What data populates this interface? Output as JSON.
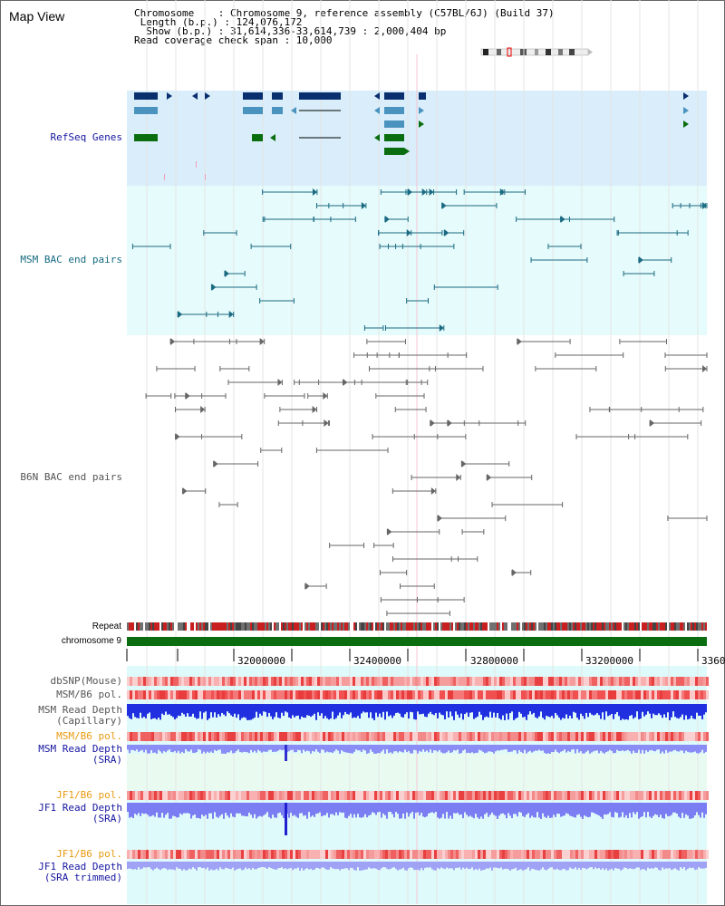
{
  "page": {
    "title": "Map View"
  },
  "info": {
    "chromosome_line": "Chromosome    : Chromosome 9, reference assembly (C57BL/6J) (Build 37)",
    "length_line": " Length (b.p.) : 124,076,172",
    "show_line": "  Show (b.p.) : 31,614,336-33,614,739 : 2,000,404 bp",
    "coverage_line": "Read coverage check span : 10,000"
  },
  "labels": {
    "refseq": "RefSeq Genes",
    "msm_bac": "MSM BAC end pairs",
    "b6n_bac": "B6N BAC end pairs",
    "repeat": "Repeat",
    "chromosome": "chromosome 9",
    "dbsnp": "dbSNP(Mouse)",
    "msm_b6_pol_1": "MSM/B6 pol.",
    "msm_read_cap": "MSM Read Depth\n(Capillary)",
    "msm_b6_pol_2": "MSM/B6 pol.",
    "msm_read_sra": "MSM Read Depth\n(SRA)",
    "jf1_b6_pol_1": "JF1/B6 pol.",
    "jf1_read_sra": "JF1 Read Depth\n(SRA)",
    "jf1_b6_pol_2": "JF1/B6 pol.",
    "jf1_read_trim": "JF1 Read Depth\n(SRA trimmed)"
  },
  "axis": {
    "ticks": [
      "32000000",
      "32400000",
      "32800000",
      "33200000",
      "3360"
    ]
  },
  "colors": {
    "refseq_bg": "#d9eefa",
    "bac_bg": "#e6fbfb",
    "lower_bg": "#dffafa",
    "gene_dark": "#0a2f6e",
    "gene_mid": "#4a93bf",
    "gene_green": "#0a6e10",
    "msm_line": "#1a6a82",
    "b6n_line": "#666666",
    "chrom": "#0a6e10",
    "label_blue": "#1515a0",
    "label_teal": "#156a80",
    "label_gray": "#555555",
    "label_orange": "#e89a10"
  }
}
